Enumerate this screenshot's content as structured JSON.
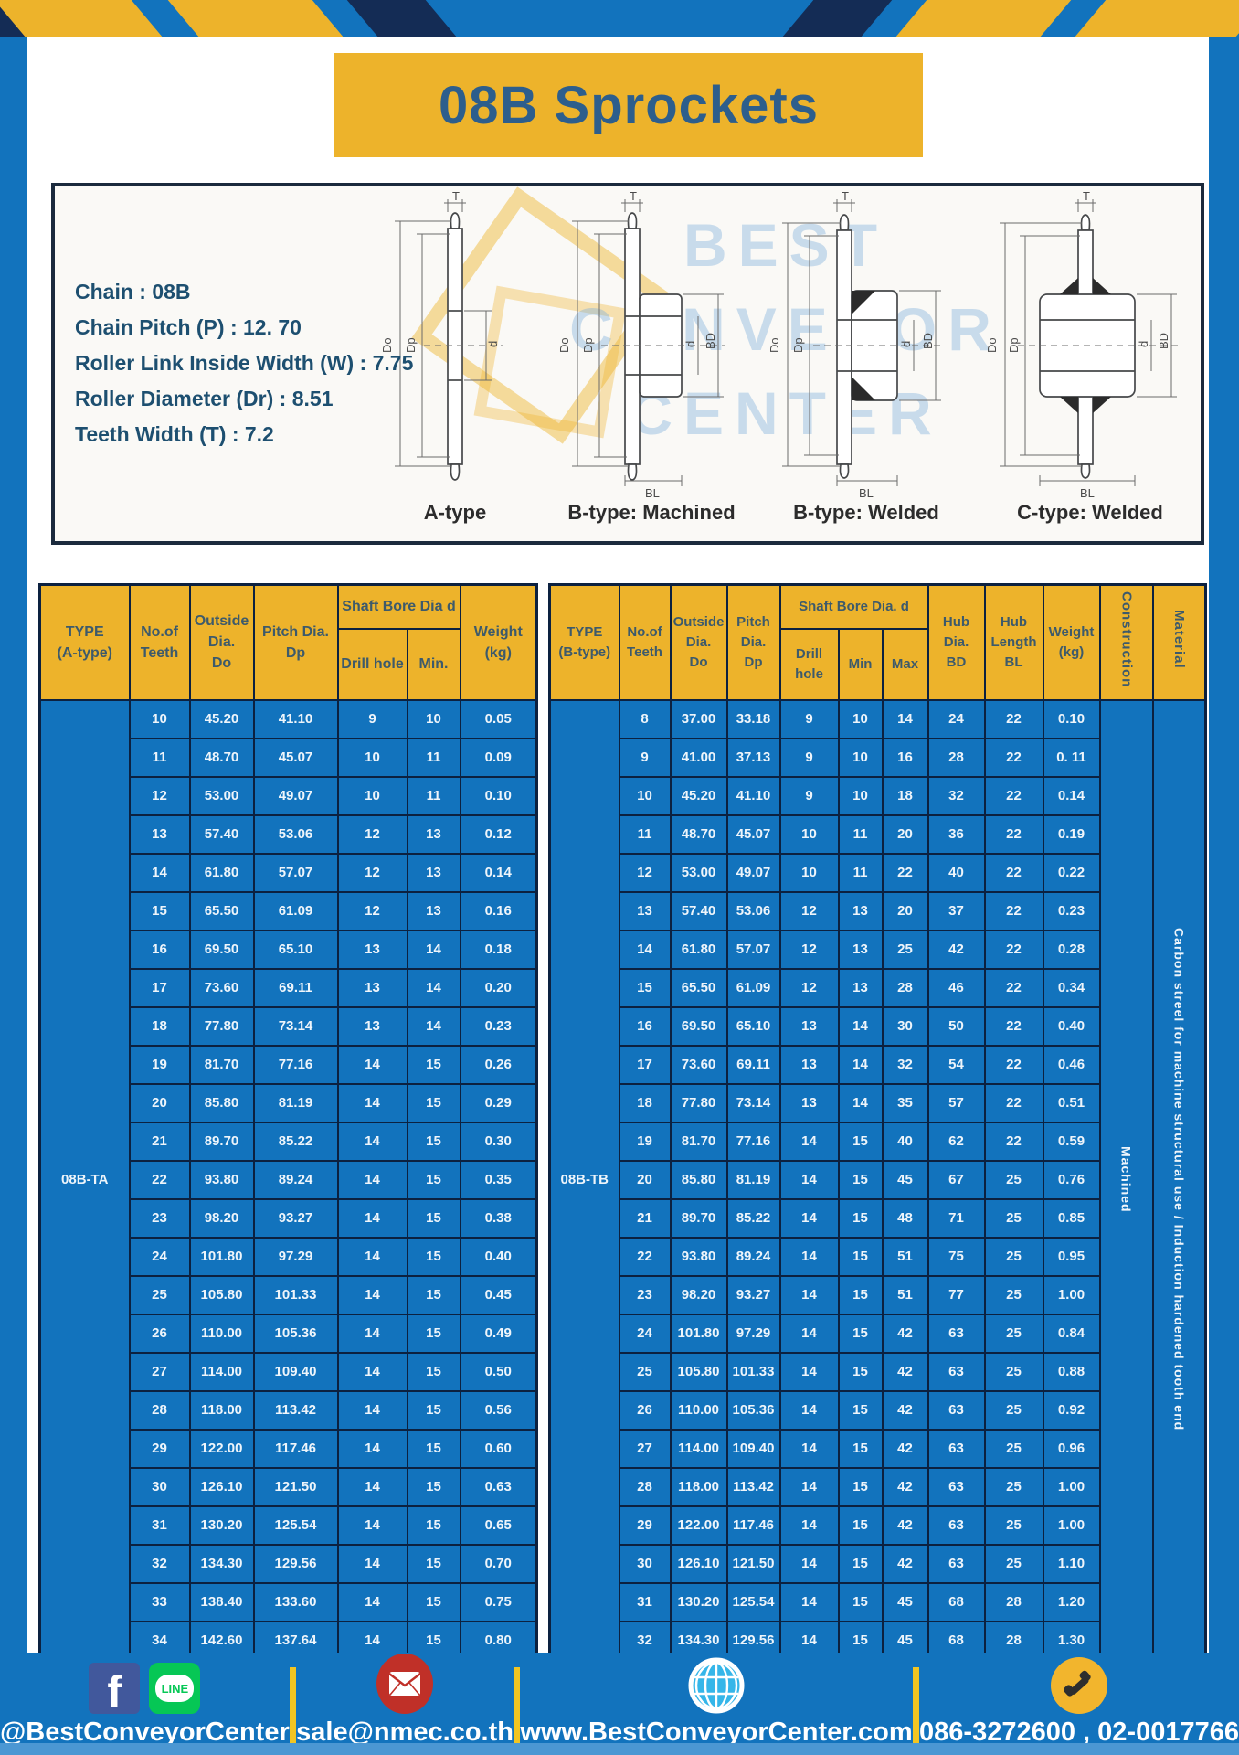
{
  "title": "08B Sprockets",
  "colors": {
    "frame_blue": "#1273bd",
    "accent_yellow": "#edb32b",
    "table_border_navy": "#0c2140",
    "title_text_blue": "#2d5e8c",
    "line_green": "#06c755",
    "facebook_blue": "#41589c",
    "mail_red": "#c03028",
    "globe_blue": "#35b6e9",
    "phone_yellow": "#f2b52d"
  },
  "spec_lines": [
    "Chain  : 08B",
    "Chain Pitch (P)  :  12. 70",
    "Roller Link Inside Width (W)  :  7.75",
    "Roller Diameter (Dr)  : 8.51",
    "Teeth Width (T)  :  7.2"
  ],
  "watermark_lines": [
    "BEST",
    "CONVEYOR",
    "CENTER"
  ],
  "diagrams": {
    "captions": [
      "A-type",
      "B-type: Machined",
      "B-type: Welded",
      "C-type: Welded"
    ],
    "dim_labels": {
      "t": "T",
      "dout": "Do",
      "dp": "Dp",
      "d": "d",
      "bd": "BD",
      "bl": "BL"
    }
  },
  "table_a": {
    "type_label": "08B-TA",
    "headers": {
      "type": "TYPE\n(A-type)",
      "teeth": "No.of\nTeeth",
      "outside": "Outside\nDia.\nDo",
      "pitch": "Pitch Dia.\nDp",
      "shaft_bore": "Shaft Bore Dia d",
      "drill": "Drill hole",
      "min": "Min.",
      "weight": "Weight\n(kg)"
    },
    "rows": [
      [
        "10",
        "45.20",
        "41.10",
        "9",
        "10",
        "0.05"
      ],
      [
        "11",
        "48.70",
        "45.07",
        "10",
        "11",
        "0.09"
      ],
      [
        "12",
        "53.00",
        "49.07",
        "10",
        "11",
        "0.10"
      ],
      [
        "13",
        "57.40",
        "53.06",
        "12",
        "13",
        "0.12"
      ],
      [
        "14",
        "61.80",
        "57.07",
        "12",
        "13",
        "0.14"
      ],
      [
        "15",
        "65.50",
        "61.09",
        "12",
        "13",
        "0.16"
      ],
      [
        "16",
        "69.50",
        "65.10",
        "13",
        "14",
        "0.18"
      ],
      [
        "17",
        "73.60",
        "69.11",
        "13",
        "14",
        "0.20"
      ],
      [
        "18",
        "77.80",
        "73.14",
        "13",
        "14",
        "0.23"
      ],
      [
        "19",
        "81.70",
        "77.16",
        "14",
        "15",
        "0.26"
      ],
      [
        "20",
        "85.80",
        "81.19",
        "14",
        "15",
        "0.29"
      ],
      [
        "21",
        "89.70",
        "85.22",
        "14",
        "15",
        "0.30"
      ],
      [
        "22",
        "93.80",
        "89.24",
        "14",
        "15",
        "0.35"
      ],
      [
        "23",
        "98.20",
        "93.27",
        "14",
        "15",
        "0.38"
      ],
      [
        "24",
        "101.80",
        "97.29",
        "14",
        "15",
        "0.40"
      ],
      [
        "25",
        "105.80",
        "101.33",
        "14",
        "15",
        "0.45"
      ],
      [
        "26",
        "110.00",
        "105.36",
        "14",
        "15",
        "0.49"
      ],
      [
        "27",
        "114.00",
        "109.40",
        "14",
        "15",
        "0.50"
      ],
      [
        "28",
        "118.00",
        "113.42",
        "14",
        "15",
        "0.56"
      ],
      [
        "29",
        "122.00",
        "117.46",
        "14",
        "15",
        "0.60"
      ],
      [
        "30",
        "126.10",
        "121.50",
        "14",
        "15",
        "0.63"
      ],
      [
        "31",
        "130.20",
        "125.54",
        "14",
        "15",
        "0.65"
      ],
      [
        "32",
        "134.30",
        "129.56",
        "14",
        "15",
        "0.70"
      ],
      [
        "33",
        "138.40",
        "133.60",
        "14",
        "15",
        "0.75"
      ],
      [
        "34",
        "142.60",
        "137.64",
        "14",
        "15",
        "0.80"
      ]
    ]
  },
  "table_b": {
    "type_label": "08B-TB",
    "headers": {
      "type": "TYPE\n(B-type)",
      "teeth": "No.of\nTeeth",
      "outside": "Outside\nDia.\nDo",
      "pitch": "Pitch\nDia.\nDp",
      "shaft_bore": "Shaft Bore Dia.  d",
      "drill": "Drill hole",
      "min": "Min",
      "max": "Max",
      "hub_dia": "Hub\nDia.\nBD",
      "hub_len": "Hub\nLength\nBL",
      "weight": "Weight\n(kg)",
      "construction": "Construction",
      "material": "Material"
    },
    "construction": "Machined",
    "material": "Carbon  streel  for  machine structural  use  /  Induction  hardened  tooth  end",
    "rows": [
      [
        "8",
        "37.00",
        "33.18",
        "9",
        "10",
        "14",
        "24",
        "22",
        "0.10"
      ],
      [
        "9",
        "41.00",
        "37.13",
        "9",
        "10",
        "16",
        "28",
        "22",
        "0. 11"
      ],
      [
        "10",
        "45.20",
        "41.10",
        "9",
        "10",
        "18",
        "32",
        "22",
        "0.14"
      ],
      [
        "11",
        "48.70",
        "45.07",
        "10",
        "11",
        "20",
        "36",
        "22",
        "0.19"
      ],
      [
        "12",
        "53.00",
        "49.07",
        "10",
        "11",
        "22",
        "40",
        "22",
        "0.22"
      ],
      [
        "13",
        "57.40",
        "53.06",
        "12",
        "13",
        "20",
        "37",
        "22",
        "0.23"
      ],
      [
        "14",
        "61.80",
        "57.07",
        "12",
        "13",
        "25",
        "42",
        "22",
        "0.28"
      ],
      [
        "15",
        "65.50",
        "61.09",
        "12",
        "13",
        "28",
        "46",
        "22",
        "0.34"
      ],
      [
        "16",
        "69.50",
        "65.10",
        "13",
        "14",
        "30",
        "50",
        "22",
        "0.40"
      ],
      [
        "17",
        "73.60",
        "69.11",
        "13",
        "14",
        "32",
        "54",
        "22",
        "0.46"
      ],
      [
        "18",
        "77.80",
        "73.14",
        "13",
        "14",
        "35",
        "57",
        "22",
        "0.51"
      ],
      [
        "19",
        "81.70",
        "77.16",
        "14",
        "15",
        "40",
        "62",
        "22",
        "0.59"
      ],
      [
        "20",
        "85.80",
        "81.19",
        "14",
        "15",
        "45",
        "67",
        "25",
        "0.76"
      ],
      [
        "21",
        "89.70",
        "85.22",
        "14",
        "15",
        "48",
        "71",
        "25",
        "0.85"
      ],
      [
        "22",
        "93.80",
        "89.24",
        "14",
        "15",
        "51",
        "75",
        "25",
        "0.95"
      ],
      [
        "23",
        "98.20",
        "93.27",
        "14",
        "15",
        "51",
        "77",
        "25",
        "1.00"
      ],
      [
        "24",
        "101.80",
        "97.29",
        "14",
        "15",
        "42",
        "63",
        "25",
        "0.84"
      ],
      [
        "25",
        "105.80",
        "101.33",
        "14",
        "15",
        "42",
        "63",
        "25",
        "0.88"
      ],
      [
        "26",
        "110.00",
        "105.36",
        "14",
        "15",
        "42",
        "63",
        "25",
        "0.92"
      ],
      [
        "27",
        "114.00",
        "109.40",
        "14",
        "15",
        "42",
        "63",
        "25",
        "0.96"
      ],
      [
        "28",
        "118.00",
        "113.42",
        "14",
        "15",
        "42",
        "63",
        "25",
        "1.00"
      ],
      [
        "29",
        "122.00",
        "117.46",
        "14",
        "15",
        "42",
        "63",
        "25",
        "1.00"
      ],
      [
        "30",
        "126.10",
        "121.50",
        "14",
        "15",
        "42",
        "63",
        "25",
        "1.10"
      ],
      [
        "31",
        "130.20",
        "125.54",
        "14",
        "15",
        "45",
        "68",
        "28",
        "1.20"
      ],
      [
        "32",
        "134.30",
        "129.56",
        "14",
        "15",
        "45",
        "68",
        "28",
        "1.30"
      ]
    ]
  },
  "footer": {
    "social_handle": "@BestConveyorCenter",
    "email": "sale@nmec.co.th",
    "website": "www.BestConveyorCenter.com",
    "phone_numbers": "086-3272600 , 02-0017766",
    "facebook_glyph": "f",
    "line_label": "LINE"
  }
}
